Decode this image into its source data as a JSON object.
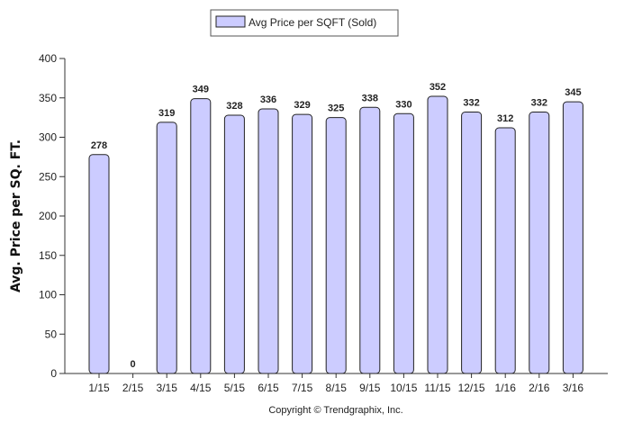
{
  "colors": {
    "bar_fill": "#ccccff",
    "bar_stroke": "#222222",
    "axis": "#333333",
    "legend_border": "#555555"
  },
  "footer": "Copyright © Trendgraphix, Inc.",
  "chart_data": {
    "type": "bar",
    "title": "",
    "xlabel": "",
    "ylabel": "Avg. Price per SQ. FT.",
    "ylim": [
      0,
      400
    ],
    "yticks": [
      0,
      50,
      100,
      150,
      200,
      250,
      300,
      350,
      400
    ],
    "grid": false,
    "legend_position": "top-center",
    "categories": [
      "1/15",
      "2/15",
      "3/15",
      "4/15",
      "5/15",
      "6/15",
      "7/15",
      "8/15",
      "9/15",
      "10/15",
      "11/15",
      "12/15",
      "1/16",
      "2/16",
      "3/16"
    ],
    "series": [
      {
        "name": "Avg Price per SQFT (Sold)",
        "values": [
          278,
          0,
          319,
          349,
          328,
          336,
          329,
          325,
          338,
          330,
          352,
          332,
          312,
          332,
          345
        ]
      }
    ]
  }
}
